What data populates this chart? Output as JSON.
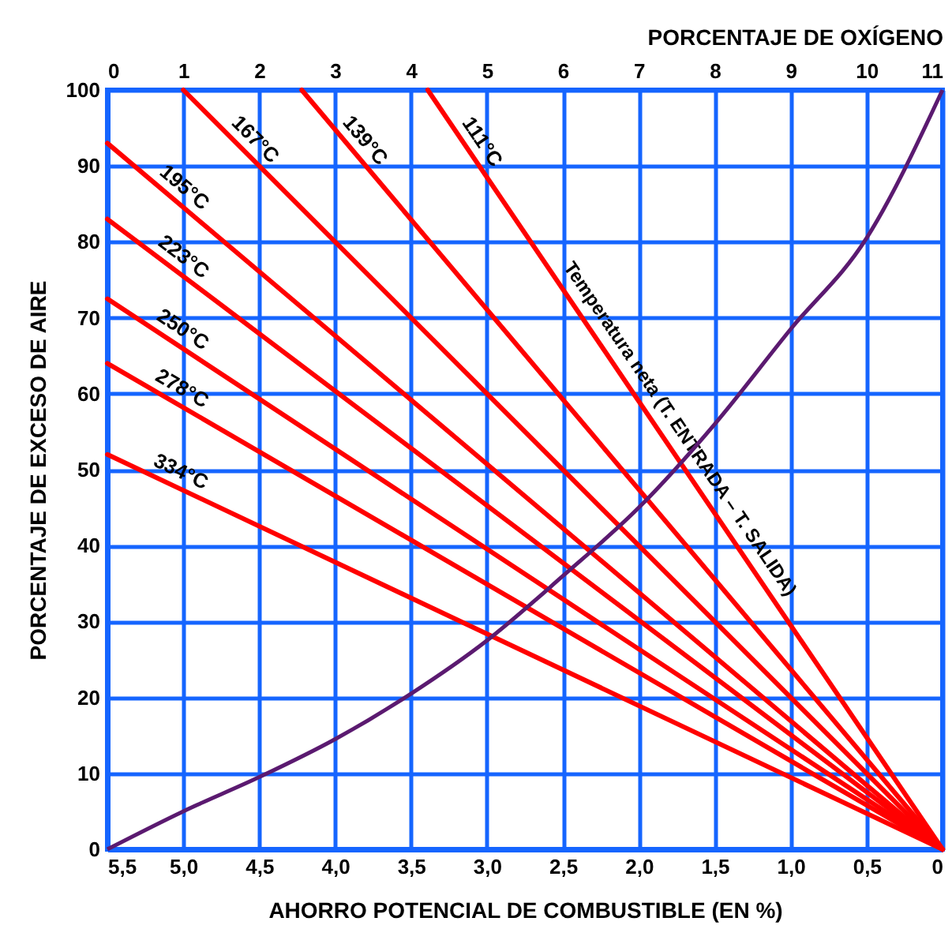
{
  "chart_data": {
    "type": "line",
    "xlabel": "AHORRO POTENCIAL DE COMBUSTIBLE (EN %)",
    "ylabel": "PORCENTAJE DE EXCESO DE AIRE",
    "x2label": "PORCENTAJE DE OXÍGENO",
    "xlim": [
      5.5,
      0
    ],
    "xticks": [
      {
        "value": 5.5,
        "label": "5,5"
      },
      {
        "value": 5,
        "label": "5,0"
      },
      {
        "value": 4.5,
        "label": "4,5"
      },
      {
        "value": 4,
        "label": "4,0"
      },
      {
        "value": 3.5,
        "label": "3,5"
      },
      {
        "value": 3,
        "label": "3,0"
      },
      {
        "value": 2.5,
        "label": "2,5"
      },
      {
        "value": 2,
        "label": "2,0"
      },
      {
        "value": 1.5,
        "label": "1,5"
      },
      {
        "value": 1,
        "label": "1,0"
      },
      {
        "value": 0.5,
        "label": "0,5"
      },
      0
    ],
    "x2lim": [
      0,
      11
    ],
    "x2ticks": [
      0,
      1,
      2,
      3,
      4,
      5,
      6,
      7,
      8,
      9,
      10,
      11
    ],
    "ylim": [
      0,
      100
    ],
    "yticks": [
      0,
      10,
      20,
      30,
      40,
      50,
      60,
      70,
      80,
      90,
      100
    ],
    "grid": true,
    "series": [
      {
        "name": "334°C",
        "color": "#ff0000",
        "x": [
          5.5,
          0
        ],
        "values": [
          52,
          0
        ]
      },
      {
        "name": "278°C",
        "color": "#ff0000",
        "x": [
          5.5,
          0
        ],
        "values": [
          64,
          0
        ]
      },
      {
        "name": "250°C",
        "color": "#ff0000",
        "x": [
          5.5,
          0
        ],
        "values": [
          72.5,
          0
        ]
      },
      {
        "name": "223°C",
        "color": "#ff0000",
        "x": [
          5.5,
          0
        ],
        "values": [
          83,
          0
        ]
      },
      {
        "name": "195°C",
        "color": "#ff0000",
        "x": [
          5.5,
          0
        ],
        "values": [
          93,
          0
        ]
      },
      {
        "name": "167°C",
        "color": "#ff0000",
        "x": [
          5.0,
          0
        ],
        "values": [
          100,
          0
        ]
      },
      {
        "name": "139°C",
        "color": "#ff0000",
        "x": [
          4.22,
          0
        ],
        "values": [
          100,
          0
        ]
      },
      {
        "name": "111°C",
        "color": "#ff0000",
        "x": [
          3.39,
          0
        ],
        "values": [
          100,
          0
        ]
      },
      {
        "color": "#5b1a70",
        "axis": "x2",
        "x": [
          0,
          1,
          2,
          3,
          4,
          5,
          6,
          7,
          8,
          9,
          10,
          11
        ],
        "values": [
          0,
          5,
          9.5,
          14.5,
          20.5,
          27.5,
          36,
          45,
          56,
          68.5,
          80.5,
          100
        ]
      }
    ],
    "annotations": [
      "Temperatura neta (T. ENTRADA – T. SALIDA)"
    ]
  }
}
